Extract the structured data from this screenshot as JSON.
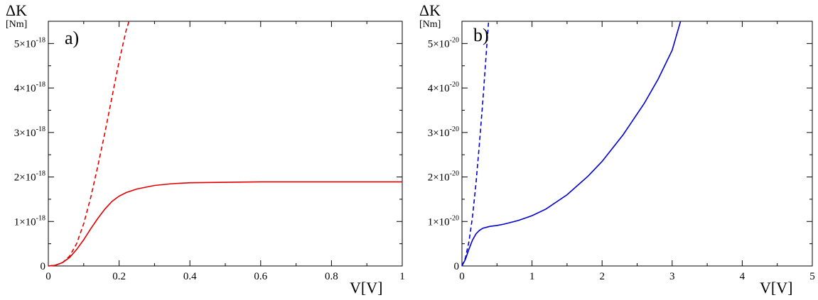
{
  "chart_data": [
    {
      "type": "line",
      "panel_label": "a)",
      "ylabel": "ΔK",
      "yunit": "[Nm]",
      "xlabel": "V[V]",
      "xlim": [
        0,
        1
      ],
      "ylim": [
        0,
        5.5e-18
      ],
      "xticks": [
        0,
        0.2,
        0.4,
        0.6,
        0.8,
        1
      ],
      "xtick_labels": [
        "0",
        "0.2",
        "0.4",
        "0.6",
        "0.8",
        "1"
      ],
      "yticks": [
        {
          "value": 0,
          "mantissa": "0",
          "exp": ""
        },
        {
          "value": 1e-18,
          "mantissa": "1×10",
          "exp": "-18"
        },
        {
          "value": 2e-18,
          "mantissa": "2×10",
          "exp": "-18"
        },
        {
          "value": 3e-18,
          "mantissa": "3×10",
          "exp": "-18"
        },
        {
          "value": 4e-18,
          "mantissa": "4×10",
          "exp": "-18"
        },
        {
          "value": 5e-18,
          "mantissa": "5×10",
          "exp": "-18"
        }
      ],
      "color": "#e00000",
      "series": [
        {
          "style": "solid",
          "x": [
            0,
            0.02,
            0.04,
            0.06,
            0.08,
            0.1,
            0.12,
            0.14,
            0.16,
            0.18,
            0.2,
            0.22,
            0.25,
            0.3,
            0.35,
            0.4,
            0.5,
            0.6,
            0.7,
            0.8,
            0.9,
            1.0
          ],
          "y": [
            0,
            1.5e-20,
            7.5e-20,
            1.9e-19,
            3.7e-19,
            5.9e-19,
            8.4e-19,
            1.07e-18,
            1.28e-18,
            1.45e-18,
            1.57e-18,
            1.65e-18,
            1.73e-18,
            1.81e-18,
            1.85e-18,
            1.87e-18,
            1.88e-18,
            1.89e-18,
            1.89e-18,
            1.89e-18,
            1.89e-18,
            1.89e-18
          ]
        },
        {
          "style": "dashed",
          "x": [
            0,
            0.02,
            0.04,
            0.06,
            0.08,
            0.1,
            0.12,
            0.14,
            0.16,
            0.18,
            0.2,
            0.22,
            0.228
          ],
          "y": [
            0,
            1.8e-20,
            7.5e-20,
            2.2e-19,
            5e-19,
            9.5e-19,
            1.55e-18,
            2.25e-18,
            3e-18,
            3.8e-18,
            4.6e-18,
            5.3e-18,
            5.5e-18
          ]
        }
      ]
    },
    {
      "type": "line",
      "panel_label": "b)",
      "ylabel": "ΔK",
      "yunit": "[Nm]",
      "xlabel": "V[V]",
      "xlim": [
        0,
        5
      ],
      "ylim": [
        0,
        5.5e-20
      ],
      "xticks": [
        0,
        1,
        2,
        3,
        4,
        5
      ],
      "xtick_labels": [
        "0",
        "1",
        "2",
        "3",
        "4",
        "5"
      ],
      "yticks": [
        {
          "value": 0,
          "mantissa": "0",
          "exp": ""
        },
        {
          "value": 1e-20,
          "mantissa": "1×10",
          "exp": "-20"
        },
        {
          "value": 2e-20,
          "mantissa": "2×10",
          "exp": "-20"
        },
        {
          "value": 3e-20,
          "mantissa": "3×10",
          "exp": "-20"
        },
        {
          "value": 4e-20,
          "mantissa": "4×10",
          "exp": "-20"
        },
        {
          "value": 5e-20,
          "mantissa": "5×10",
          "exp": "-20"
        }
      ],
      "color": "#0000d0",
      "series": [
        {
          "style": "solid",
          "x": [
            0,
            0.05,
            0.1,
            0.15,
            0.2,
            0.25,
            0.3,
            0.4,
            0.5,
            0.6,
            0.8,
            1.0,
            1.2,
            1.5,
            1.8,
            2.0,
            2.3,
            2.6,
            2.8,
            3.0,
            3.12
          ],
          "y": [
            0,
            1.5e-21,
            3.8e-21,
            5.8e-21,
            7.2e-21,
            8e-21,
            8.5e-21,
            8.9e-21,
            9.1e-21,
            9.4e-21,
            1.02e-20,
            1.13e-20,
            1.28e-20,
            1.6e-20,
            2.02e-20,
            2.35e-20,
            2.95e-20,
            3.65e-20,
            4.2e-20,
            4.85e-20,
            5.5e-20
          ]
        },
        {
          "style": "dashed",
          "x": [
            0,
            0.05,
            0.1,
            0.15,
            0.2,
            0.25,
            0.3,
            0.35,
            0.38
          ],
          "y": [
            0,
            1.8e-21,
            5.5e-21,
            1.1e-20,
            1.85e-20,
            2.75e-20,
            3.75e-20,
            4.85e-20,
            5.5e-20
          ]
        }
      ]
    }
  ]
}
